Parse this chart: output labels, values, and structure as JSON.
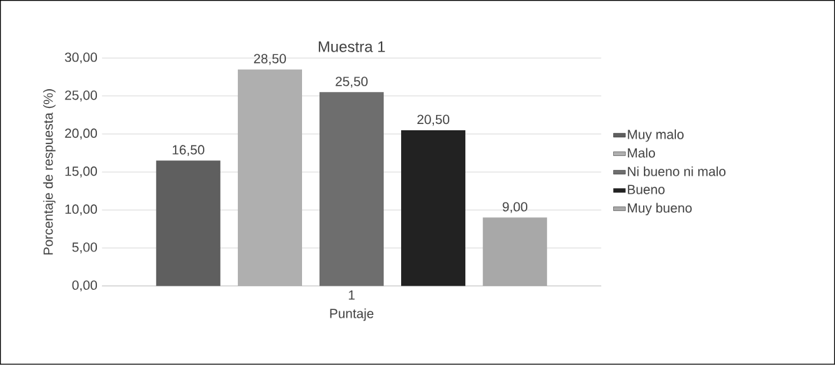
{
  "chart_data": {
    "type": "bar",
    "title": "Muestra 1",
    "xlabel": "Puntaje",
    "ylabel": "Porcentaje de respuesta (%)",
    "categories": [
      "1"
    ],
    "series": [
      {
        "name": "Muy malo",
        "color": "#5f5f5f",
        "values": [
          16.5
        ],
        "value_labels": [
          "16,50"
        ]
      },
      {
        "name": "Malo",
        "color": "#afafaf",
        "values": [
          28.5
        ],
        "value_labels": [
          "28,50"
        ]
      },
      {
        "name": "Ni bueno ni malo",
        "color": "#6e6e6e",
        "values": [
          25.5
        ],
        "value_labels": [
          "25,50"
        ]
      },
      {
        "name": "Bueno",
        "color": "#222222",
        "values": [
          20.5
        ],
        "value_labels": [
          "20,50"
        ]
      },
      {
        "name": "Muy bueno",
        "color": "#a8a8a8",
        "values": [
          9.0
        ],
        "value_labels": [
          "9,00"
        ]
      }
    ],
    "ylim": [
      0,
      30
    ],
    "yticks": [
      {
        "value": 0,
        "label": "0,00"
      },
      {
        "value": 5,
        "label": "5,00"
      },
      {
        "value": 10,
        "label": "10,00"
      },
      {
        "value": 15,
        "label": "15,00"
      },
      {
        "value": 20,
        "label": "20,00"
      },
      {
        "value": 25,
        "label": "25,00"
      },
      {
        "value": 30,
        "label": "30,00"
      }
    ],
    "grid": "y",
    "legend": "right"
  }
}
